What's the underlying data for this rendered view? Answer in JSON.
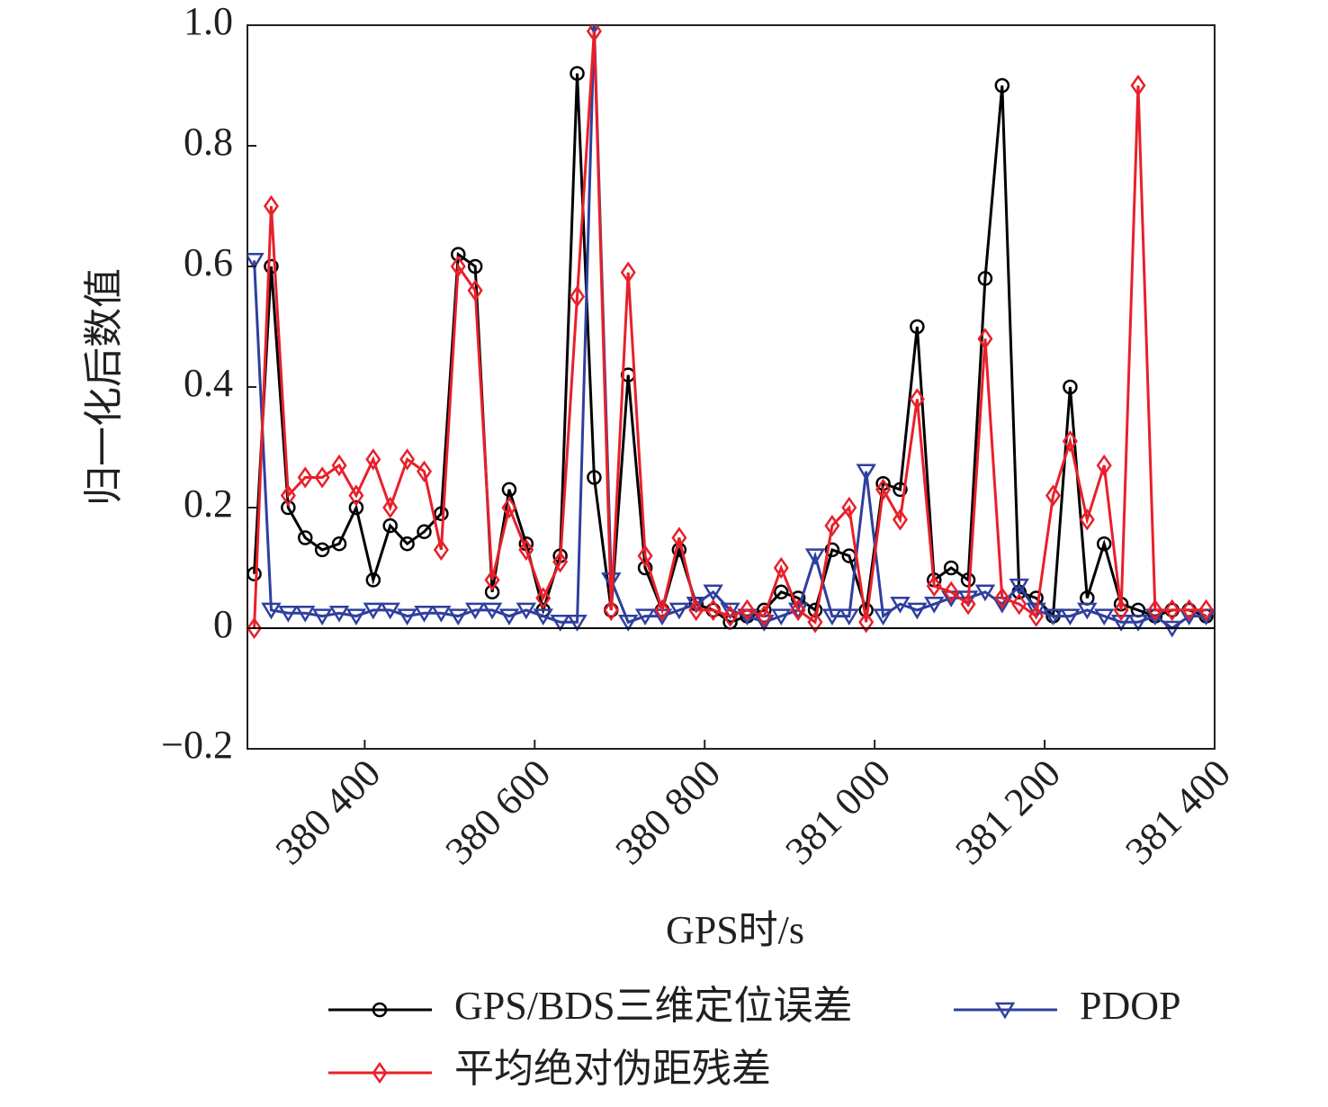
{
  "chart_data": {
    "type": "line",
    "xlabel": "GPS时/s",
    "ylabel": "归一化后数值",
    "x": [
      380270,
      380290,
      380310,
      380330,
      380350,
      380370,
      380390,
      380410,
      380430,
      380450,
      380470,
      380490,
      380510,
      380530,
      380550,
      380570,
      380590,
      380610,
      380630,
      380650,
      380670,
      380690,
      380710,
      380730,
      380750,
      380770,
      380790,
      380810,
      380830,
      380850,
      380870,
      380890,
      380910,
      380930,
      380950,
      380970,
      380990,
      381010,
      381030,
      381050,
      381070,
      381090,
      381110,
      381130,
      381150,
      381170,
      381190,
      381210,
      381230,
      381250,
      381270,
      381290,
      381310,
      381330,
      381350,
      381370,
      381390
    ],
    "series": [
      {
        "name": "GPS/BDS三维定位误差",
        "color": "#000000",
        "marker": "circle",
        "values": [
          0.09,
          0.6,
          0.2,
          0.15,
          0.13,
          0.14,
          0.2,
          0.08,
          0.17,
          0.14,
          0.16,
          0.19,
          0.62,
          0.6,
          0.06,
          0.23,
          0.14,
          0.03,
          0.12,
          0.92,
          0.25,
          0.03,
          0.42,
          0.1,
          0.03,
          0.13,
          0.04,
          0.03,
          0.01,
          0.02,
          0.03,
          0.06,
          0.05,
          0.03,
          0.13,
          0.12,
          0.03,
          0.24,
          0.23,
          0.5,
          0.08,
          0.1,
          0.08,
          0.58,
          0.9,
          0.06,
          0.05,
          0.02,
          0.4,
          0.05,
          0.14,
          0.04,
          0.03,
          0.02,
          0.03,
          0.03,
          0.02
        ]
      },
      {
        "name": "PDOP",
        "color": "#2e3f9e",
        "marker": "triangle",
        "values": [
          0.61,
          0.03,
          0.025,
          0.025,
          0.02,
          0.025,
          0.02,
          0.03,
          0.03,
          0.02,
          0.025,
          0.025,
          0.02,
          0.03,
          0.03,
          0.02,
          0.03,
          0.02,
          0.01,
          0.01,
          1.0,
          0.08,
          0.01,
          0.02,
          0.02,
          0.03,
          0.04,
          0.06,
          0.03,
          0.02,
          0.01,
          0.02,
          0.03,
          0.12,
          0.02,
          0.02,
          0.26,
          0.02,
          0.04,
          0.03,
          0.04,
          0.05,
          0.05,
          0.06,
          0.04,
          0.07,
          0.03,
          0.02,
          0.02,
          0.03,
          0.02,
          0.01,
          0.01,
          0.02,
          0.0,
          0.02,
          0.02
        ]
      },
      {
        "name": "平均绝对伪距残差",
        "color": "#e8202a",
        "marker": "diamond",
        "values": [
          0.0,
          0.7,
          0.22,
          0.25,
          0.25,
          0.27,
          0.22,
          0.28,
          0.2,
          0.28,
          0.26,
          0.13,
          0.6,
          0.56,
          0.08,
          0.2,
          0.13,
          0.05,
          0.11,
          0.55,
          0.99,
          0.03,
          0.59,
          0.12,
          0.03,
          0.15,
          0.03,
          0.03,
          0.02,
          0.03,
          0.02,
          0.1,
          0.03,
          0.01,
          0.17,
          0.2,
          0.01,
          0.23,
          0.18,
          0.38,
          0.07,
          0.06,
          0.04,
          0.48,
          0.05,
          0.04,
          0.02,
          0.22,
          0.31,
          0.18,
          0.27,
          0.03,
          0.9,
          0.03,
          0.03,
          0.03,
          0.03
        ]
      }
    ],
    "xlim": [
      380262,
      381400
    ],
    "xticks": [
      {
        "value": 380400,
        "label": "380 400"
      },
      {
        "value": 380600,
        "label": "380 600"
      },
      {
        "value": 380800,
        "label": "380 800"
      },
      {
        "value": 381000,
        "label": "381 000"
      },
      {
        "value": 381200,
        "label": "381 200"
      },
      {
        "value": 381400,
        "label": "381 400"
      }
    ],
    "ylim": [
      -0.2,
      1.0
    ],
    "yticks": [
      {
        "value": -0.2,
        "label": "−0.2"
      },
      0,
      0.2,
      0.4,
      0.6,
      0.8,
      {
        "value": 1.0,
        "label": "1.0"
      }
    ],
    "legend": "bottom"
  }
}
